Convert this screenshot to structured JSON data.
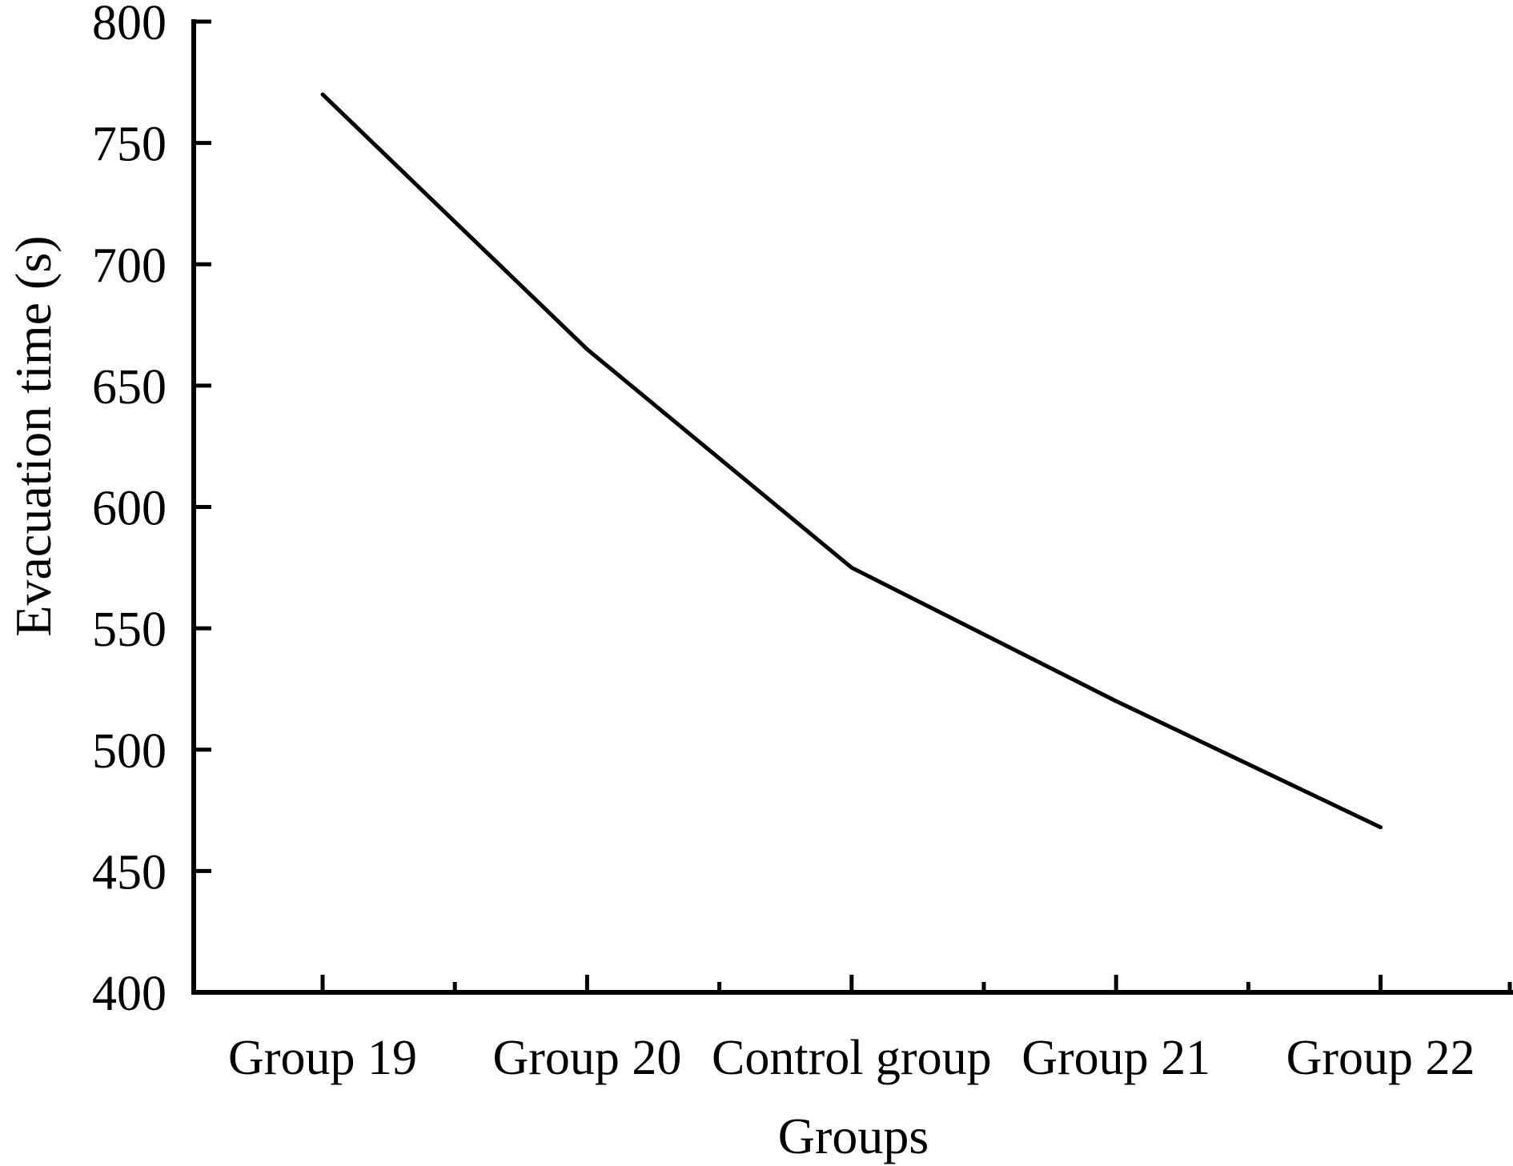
{
  "chart_data": {
    "type": "line",
    "categories": [
      "Group 19",
      "Group 20",
      "Control group",
      "Group 21",
      "Group 22"
    ],
    "series": [
      {
        "name": "Evacuation time",
        "values": [
          770,
          665,
          575,
          520,
          468
        ]
      }
    ],
    "title": "",
    "xlabel": "Groups",
    "ylabel": "Evacuation time (s)",
    "ylim": [
      400,
      800
    ],
    "ytick_step": 50,
    "ytick_labels": [
      "400",
      "450",
      "500",
      "550",
      "600",
      "650",
      "700",
      "750",
      "800"
    ],
    "grid": false,
    "legend_position": "none",
    "line_color": "#000000",
    "axis_color": "#000000",
    "background_color": "#ffffff"
  }
}
